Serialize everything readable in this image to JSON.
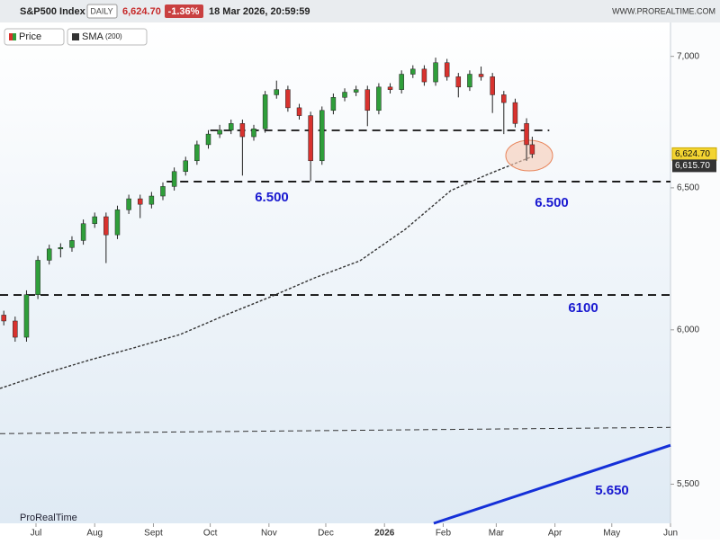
{
  "header": {
    "symbol": "S&P500 Index",
    "interval": "DAILY",
    "price": "6,624.70",
    "change": "-1.36%",
    "timestamp": "18 Mar 2026, 20:59:59",
    "site": "WWW.PROREALTIME.COM"
  },
  "legend": {
    "price": "Price",
    "sma": "SMA",
    "sma_period": "(200)"
  },
  "footer": {
    "brand": "ProRealTime"
  },
  "chart_data": {
    "type": "candlestick",
    "log_scale": true,
    "xlim": [
      0,
      354
    ],
    "xticks": [
      {
        "value": 19,
        "label": "Jul"
      },
      {
        "value": 50,
        "label": "Aug"
      },
      {
        "value": 81,
        "label": "Sept"
      },
      {
        "value": 111,
        "label": "Oct"
      },
      {
        "value": 142,
        "label": "Nov"
      },
      {
        "value": 172,
        "label": "Dec"
      },
      {
        "value": 203,
        "label": "2026"
      },
      {
        "value": 234,
        "label": "Feb"
      },
      {
        "value": 262,
        "label": "Mar"
      },
      {
        "value": 293,
        "label": "Apr"
      },
      {
        "value": 323,
        "label": "May"
      },
      {
        "value": 354,
        "label": "Jun"
      }
    ],
    "ylim": [
      5380,
      7135
    ],
    "yticks": [
      {
        "value": 5500,
        "label": "5,500"
      },
      {
        "value": 6000,
        "label": "6,000"
      },
      {
        "value": 6500,
        "label": "6,500"
      },
      {
        "value": 7000,
        "label": "7,000"
      }
    ],
    "candles": {
      "name": "Price",
      "up_color": "#2f9e3a",
      "down_color": "#d8322e",
      "last_label": "6,624.70",
      "x": [
        2,
        8,
        14,
        20,
        26,
        32,
        38,
        44,
        50,
        56,
        62,
        68,
        74,
        80,
        86,
        92,
        98,
        104,
        110,
        116,
        122,
        128,
        134,
        140,
        146,
        152,
        158,
        164,
        170,
        176,
        182,
        188,
        194,
        200,
        206,
        212,
        218,
        224,
        230,
        236,
        242,
        248,
        254,
        260,
        266,
        272,
        278,
        281
      ],
      "open": [
        6050,
        6030,
        5975,
        6120,
        6240,
        6280,
        6285,
        6310,
        6370,
        6395,
        6330,
        6420,
        6460,
        6440,
        6470,
        6505,
        6560,
        6600,
        6660,
        6700,
        6715,
        6740,
        6690,
        6720,
        6850,
        6870,
        6800,
        6770,
        6600,
        6790,
        6840,
        6860,
        6870,
        6790,
        6880,
        6870,
        6930,
        6950,
        6900,
        6975,
        6920,
        6880,
        6930,
        6920,
        6850,
        6820,
        6740,
        6660
      ],
      "high": [
        6065,
        6045,
        6135,
        6255,
        6295,
        6300,
        6325,
        6385,
        6410,
        6410,
        6435,
        6475,
        6475,
        6485,
        6520,
        6575,
        6615,
        6675,
        6715,
        6735,
        6755,
        6755,
        6735,
        6865,
        6905,
        6885,
        6815,
        6785,
        6805,
        6855,
        6875,
        6885,
        6885,
        6895,
        6895,
        6945,
        6965,
        6965,
        6995,
        6990,
        6935,
        6945,
        6960,
        6935,
        6865,
        6835,
        6760,
        6690
      ],
      "low": [
        6015,
        5960,
        5960,
        6105,
        6225,
        6250,
        6270,
        6295,
        6355,
        6230,
        6315,
        6405,
        6390,
        6425,
        6455,
        6490,
        6545,
        6585,
        6645,
        6685,
        6700,
        6545,
        6675,
        6705,
        6835,
        6785,
        6755,
        6525,
        6585,
        6775,
        6825,
        6845,
        6730,
        6775,
        6855,
        6855,
        6915,
        6885,
        6885,
        6905,
        6840,
        6865,
        6905,
        6780,
        6700,
        6725,
        6600,
        6610
      ],
      "close": [
        6030,
        5975,
        6120,
        6240,
        6280,
        6285,
        6310,
        6370,
        6395,
        6330,
        6420,
        6460,
        6440,
        6470,
        6505,
        6560,
        6600,
        6660,
        6700,
        6715,
        6740,
        6690,
        6720,
        6850,
        6870,
        6800,
        6770,
        6600,
        6790,
        6840,
        6860,
        6870,
        6790,
        6880,
        6870,
        6930,
        6950,
        6900,
        6975,
        6920,
        6880,
        6930,
        6920,
        6850,
        6820,
        6740,
        6660,
        6624.7
      ]
    },
    "sma": {
      "name": "SMA",
      "color": "#333333",
      "last_label": "6,615.70",
      "x": [
        0,
        24,
        48,
        71,
        95,
        119,
        143,
        166,
        190,
        214,
        238,
        257,
        281
      ],
      "values": [
        5805,
        5855,
        5900,
        5940,
        5984,
        6050,
        6113,
        6178,
        6238,
        6350,
        6490,
        6548,
        6615.7
      ]
    },
    "levels": [
      {
        "value": 6714,
        "start": 111,
        "end": 290
      },
      {
        "value": 6523,
        "start": 88,
        "end": 354
      },
      {
        "value": 6119,
        "start": 0,
        "end": 354
      }
    ],
    "lines": [
      {
        "x": [
          0,
          354
        ],
        "values": [
          5659,
          5679
        ],
        "color": "#333333",
        "dashed": true
      },
      {
        "x": [
          229,
          354
        ],
        "values": [
          5380,
          5622
        ],
        "color": "#1530d8",
        "dashed": false
      }
    ],
    "annotations": [
      "6.500",
      "6.500",
      "6100",
      "5.650"
    ]
  }
}
